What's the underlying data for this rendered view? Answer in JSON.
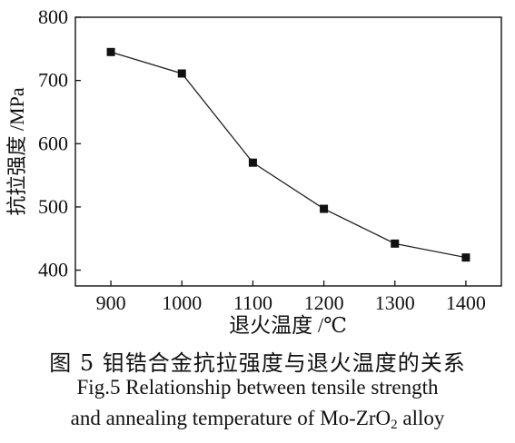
{
  "chart_data": {
    "type": "line",
    "x": [
      900,
      1000,
      1100,
      1200,
      1300,
      1400
    ],
    "y": [
      745,
      711,
      570,
      497,
      442,
      420
    ],
    "xlabel": "退火温度 /℃",
    "ylabel": "抗拉强度 /MPa",
    "xticks": [
      "900",
      "1000",
      "1100",
      "1200",
      "1300",
      "1400"
    ],
    "yticks": [
      "400",
      "500",
      "600",
      "700",
      "800"
    ],
    "xlim": [
      850,
      1450
    ],
    "ylim": [
      375,
      800
    ],
    "grid": false,
    "marker": "square"
  },
  "caption": {
    "cn": "图 5  钼锆合金抗拉强度与退火温度的关系",
    "en_line1": "Fig.5  Relationship between tensile strength",
    "en_line2_main": "and annealing temperature of Mo-ZrO",
    "en_line2_sub": "2",
    "en_line2_tail": " alloy"
  }
}
